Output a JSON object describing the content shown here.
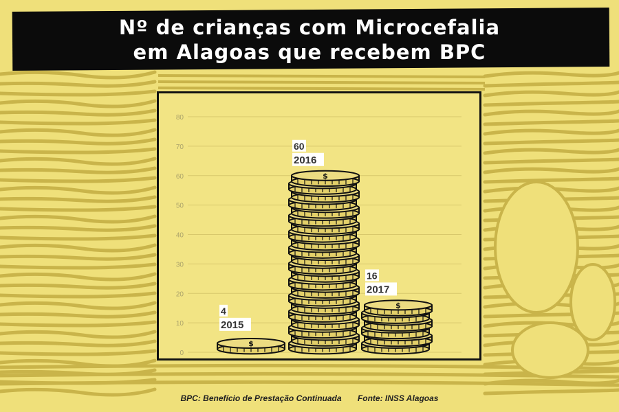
{
  "title": {
    "line1": "Nº de crianças com Microcefalia",
    "line2": "em Alagoas que recebem BPC"
  },
  "footer": {
    "note": "BPC: Benefício de Prestação Continuada",
    "source": "Fonte: INSS Alagoas"
  },
  "colors": {
    "background": "#efe07a",
    "title_band": "#0b0b0b",
    "coin_fill": "#e3d06a",
    "ink": "#111111",
    "label_box": "#ffffff"
  },
  "chart_data": {
    "type": "bar",
    "categories": [
      "2015",
      "2016",
      "2017"
    ],
    "values": [
      4,
      60,
      16
    ],
    "ylim": [
      0,
      80
    ],
    "yticks": [
      0,
      10,
      20,
      30,
      40,
      50,
      60,
      70,
      80
    ],
    "grid": true,
    "mark_style": "stacked coins",
    "xlabel": "",
    "ylabel": ""
  }
}
